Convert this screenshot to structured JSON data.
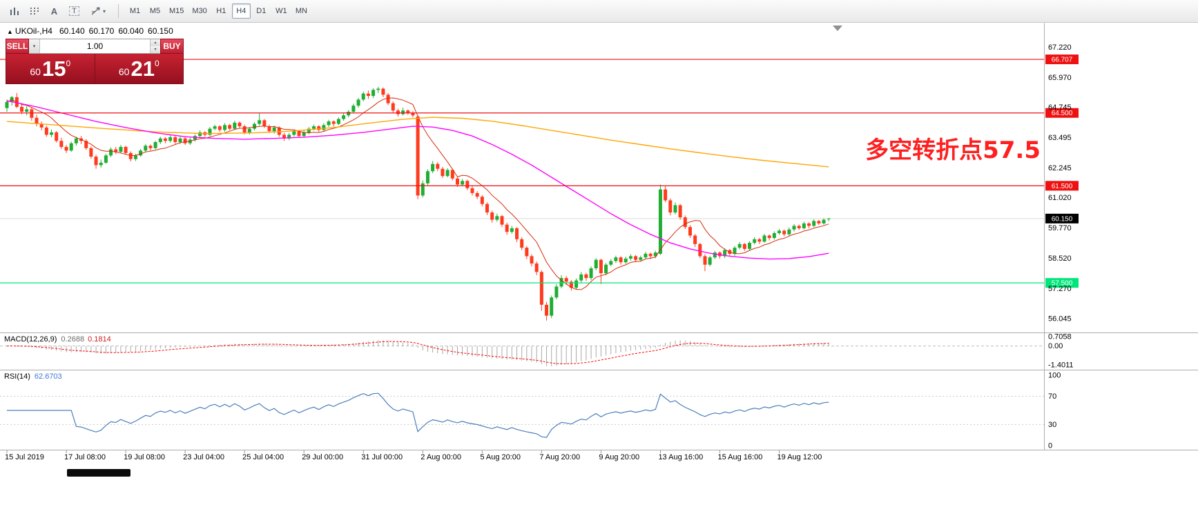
{
  "toolbar": {
    "timeframes": [
      "M1",
      "M5",
      "M15",
      "M30",
      "H1",
      "H4",
      "D1",
      "W1",
      "MN"
    ],
    "active_timeframe": "H4",
    "icons": [
      "bar-chart-icon",
      "indicators-grid-icon",
      "text-a-icon",
      "text-label-icon",
      "drawing-tools-icon",
      "chevron-down-icon"
    ],
    "a_glyph": "A",
    "t_glyph": "T",
    "caret_glyph": "▾"
  },
  "symbol_line": {
    "collapse_arrow": "▲",
    "symbol": "UKOil-,H4",
    "open": "60.140",
    "high": "60.170",
    "low": "60.040",
    "close": "60.150"
  },
  "trade_panel": {
    "sell_label": "SELL",
    "buy_label": "BUY",
    "volume": "1.00",
    "spinner_up": "▴",
    "spinner_down": "▾",
    "dropdown_glyph": "▾",
    "sell_price_small": "60",
    "sell_price_big": "15",
    "sell_price_sup": "0",
    "buy_price_small": "60",
    "buy_price_big": "21",
    "buy_price_sup": "0"
  },
  "chart_data": {
    "type": "candlestick",
    "symbol": "UKOil-",
    "timeframe": "H4",
    "colors": {
      "bull": "#1fae33",
      "bear": "#ff3b1e",
      "ma_fast": "#d42b0a",
      "ma_mid": "#ff00ff",
      "ma_slow": "#ffa500",
      "line_red": "#ee1111",
      "line_green": "#00e67a",
      "current_tag": "#000000",
      "rsi": "#4a7ebb",
      "macd_hist": "#a8a8a8",
      "macd_signal": "#ff0000"
    },
    "y_axis_ticks": [
      "67.220",
      "65.970",
      "64.745",
      "63.495",
      "62.245",
      "61.020",
      "59.770",
      "58.520",
      "57.270",
      "56.045"
    ],
    "h_lines": [
      {
        "value": 66.707,
        "label": "66.707",
        "color": "#ee1111"
      },
      {
        "value": 64.5,
        "label": "64.500",
        "color": "#ee1111"
      },
      {
        "value": 61.5,
        "label": "61.500",
        "color": "#ee1111"
      },
      {
        "value": 57.5,
        "label": "57.500",
        "color": "#00e67a"
      }
    ],
    "current_price": {
      "value": 60.15,
      "label": "60.150"
    },
    "x_axis_labels": [
      {
        "bar": 0,
        "label": "15 Jul 2019"
      },
      {
        "bar": 12,
        "label": "17 Jul 08:00"
      },
      {
        "bar": 24,
        "label": "19 Jul 08:00"
      },
      {
        "bar": 36,
        "label": "23 Jul 04:00"
      },
      {
        "bar": 48,
        "label": "25 Jul 04:00"
      },
      {
        "bar": 60,
        "label": "29 Jul 00:00"
      },
      {
        "bar": 72,
        "label": "31 Jul 00:00"
      },
      {
        "bar": 84,
        "label": "2 Aug 00:00"
      },
      {
        "bar": 96,
        "label": "5 Aug 20:00"
      },
      {
        "bar": 108,
        "label": "7 Aug 20:00"
      },
      {
        "bar": 120,
        "label": "9 Aug 20:00"
      },
      {
        "bar": 132,
        "label": "13 Aug 16:00"
      },
      {
        "bar": 144,
        "label": "15 Aug 16:00"
      },
      {
        "bar": 156,
        "label": "19 Aug 12:00"
      }
    ],
    "macd": {
      "name": "MACD(12,26,9)",
      "main_value": "0.2688",
      "signal_value": "0.1814",
      "axis_labels": [
        "0.7058",
        "0.00",
        "-1.4011"
      ]
    },
    "rsi": {
      "name": "RSI(14)",
      "value": "62.6703",
      "axis_labels": [
        "100",
        "70",
        "30",
        "0"
      ],
      "dashed_levels": [
        70,
        30
      ]
    },
    "annotation": {
      "text": "多空转折点57.5",
      "color": "#ff1f1f"
    },
    "ma_lines": [
      {
        "name": "ma-slow",
        "color": "#ffa500",
        "points": [
          [
            0,
            64.15
          ],
          [
            10,
            64.0
          ],
          [
            20,
            63.85
          ],
          [
            30,
            63.72
          ],
          [
            40,
            63.65
          ],
          [
            50,
            63.68
          ],
          [
            58,
            63.76
          ],
          [
            66,
            63.9
          ],
          [
            74,
            64.1
          ],
          [
            80,
            64.24
          ],
          [
            86,
            64.32
          ],
          [
            92,
            64.28
          ],
          [
            98,
            64.16
          ],
          [
            104,
            63.98
          ],
          [
            110,
            63.78
          ],
          [
            116,
            63.58
          ],
          [
            122,
            63.38
          ],
          [
            128,
            63.2
          ],
          [
            134,
            63.02
          ],
          [
            140,
            62.86
          ],
          [
            146,
            62.7
          ],
          [
            152,
            62.56
          ],
          [
            158,
            62.44
          ],
          [
            166,
            62.28
          ]
        ]
      },
      {
        "name": "ma-mid",
        "color": "#ff00ff",
        "points": [
          [
            0,
            65.0
          ],
          [
            6,
            64.75
          ],
          [
            12,
            64.45
          ],
          [
            18,
            64.15
          ],
          [
            24,
            63.9
          ],
          [
            30,
            63.68
          ],
          [
            36,
            63.52
          ],
          [
            42,
            63.45
          ],
          [
            48,
            63.42
          ],
          [
            54,
            63.45
          ],
          [
            60,
            63.5
          ],
          [
            66,
            63.58
          ],
          [
            72,
            63.7
          ],
          [
            78,
            63.85
          ],
          [
            82,
            63.95
          ],
          [
            86,
            63.92
          ],
          [
            90,
            63.78
          ],
          [
            94,
            63.55
          ],
          [
            98,
            63.2
          ],
          [
            102,
            62.8
          ],
          [
            106,
            62.35
          ],
          [
            110,
            61.85
          ],
          [
            114,
            61.35
          ],
          [
            118,
            60.85
          ],
          [
            122,
            60.35
          ],
          [
            126,
            59.9
          ],
          [
            130,
            59.5
          ],
          [
            134,
            59.15
          ],
          [
            138,
            58.9
          ],
          [
            142,
            58.72
          ],
          [
            146,
            58.6
          ],
          [
            150,
            58.52
          ],
          [
            154,
            58.48
          ],
          [
            158,
            58.5
          ],
          [
            162,
            58.58
          ],
          [
            166,
            58.72
          ]
        ]
      }
    ],
    "ma_fast_period": 9,
    "candles": [
      [
        64.7,
        65.05,
        64.55,
        64.95
      ],
      [
        64.95,
        65.2,
        64.8,
        65.15
      ],
      [
        65.15,
        65.32,
        64.7,
        64.75
      ],
      [
        64.75,
        64.9,
        64.45,
        64.55
      ],
      [
        64.55,
        64.78,
        64.4,
        64.65
      ],
      [
        64.65,
        64.72,
        64.18,
        64.3
      ],
      [
        64.3,
        64.42,
        63.95,
        64.05
      ],
      [
        64.05,
        64.15,
        63.78,
        63.9
      ],
      [
        63.9,
        63.98,
        63.52,
        63.6
      ],
      [
        63.6,
        63.82,
        63.5,
        63.7
      ],
      [
        63.7,
        63.76,
        63.28,
        63.35
      ],
      [
        63.35,
        63.48,
        63.02,
        63.1
      ],
      [
        63.1,
        63.18,
        62.85,
        62.95
      ],
      [
        62.95,
        63.32,
        62.9,
        63.25
      ],
      [
        63.25,
        63.52,
        63.15,
        63.45
      ],
      [
        63.45,
        63.55,
        63.22,
        63.35
      ],
      [
        63.35,
        63.42,
        62.98,
        63.05
      ],
      [
        63.05,
        63.12,
        62.62,
        62.7
      ],
      [
        62.7,
        62.78,
        62.2,
        62.35
      ],
      [
        62.35,
        62.58,
        62.25,
        62.45
      ],
      [
        62.45,
        62.82,
        62.4,
        62.75
      ],
      [
        62.75,
        63.08,
        62.68,
        63.0
      ],
      [
        63.0,
        63.1,
        62.8,
        62.9
      ],
      [
        62.9,
        63.18,
        62.85,
        63.1
      ],
      [
        63.1,
        63.15,
        62.78,
        62.85
      ],
      [
        62.85,
        62.92,
        62.5,
        62.6
      ],
      [
        62.6,
        62.82,
        62.52,
        62.75
      ],
      [
        62.75,
        63.02,
        62.7,
        62.95
      ],
      [
        62.95,
        63.22,
        62.88,
        63.15
      ],
      [
        63.15,
        63.2,
        62.95,
        63.05
      ],
      [
        63.05,
        63.35,
        63.0,
        63.3
      ],
      [
        63.3,
        63.52,
        63.22,
        63.45
      ],
      [
        63.45,
        63.5,
        63.25,
        63.35
      ],
      [
        63.35,
        63.58,
        63.28,
        63.5
      ],
      [
        63.5,
        63.55,
        63.22,
        63.3
      ],
      [
        63.3,
        63.52,
        63.22,
        63.45
      ],
      [
        63.45,
        63.5,
        63.18,
        63.25
      ],
      [
        63.25,
        63.48,
        63.18,
        63.4
      ],
      [
        63.4,
        63.62,
        63.32,
        63.55
      ],
      [
        63.55,
        63.78,
        63.48,
        63.7
      ],
      [
        63.7,
        63.75,
        63.52,
        63.6
      ],
      [
        63.6,
        63.92,
        63.55,
        63.85
      ],
      [
        63.85,
        64.02,
        63.78,
        63.95
      ],
      [
        63.95,
        64.0,
        63.72,
        63.8
      ],
      [
        63.8,
        64.08,
        63.72,
        64.0
      ],
      [
        64.0,
        64.05,
        63.78,
        63.85
      ],
      [
        63.85,
        64.18,
        63.8,
        64.1
      ],
      [
        64.1,
        64.15,
        63.88,
        63.95
      ],
      [
        63.95,
        64.02,
        63.62,
        63.7
      ],
      [
        63.7,
        63.92,
        63.62,
        63.85
      ],
      [
        63.85,
        64.12,
        63.78,
        64.05
      ],
      [
        64.05,
        64.48,
        63.98,
        64.2
      ],
      [
        64.2,
        64.25,
        63.88,
        63.95
      ],
      [
        63.95,
        64.02,
        63.68,
        63.75
      ],
      [
        63.75,
        63.98,
        63.65,
        63.9
      ],
      [
        63.9,
        63.95,
        63.52,
        63.6
      ],
      [
        63.6,
        63.68,
        63.35,
        63.45
      ],
      [
        63.45,
        63.68,
        63.38,
        63.6
      ],
      [
        63.6,
        63.82,
        63.52,
        63.75
      ],
      [
        63.75,
        63.8,
        63.48,
        63.55
      ],
      [
        63.55,
        63.78,
        63.48,
        63.7
      ],
      [
        63.7,
        63.92,
        63.62,
        63.85
      ],
      [
        63.85,
        64.02,
        63.78,
        63.95
      ],
      [
        63.95,
        64.0,
        63.72,
        63.8
      ],
      [
        63.8,
        64.08,
        63.75,
        64.0
      ],
      [
        64.0,
        64.22,
        63.92,
        64.15
      ],
      [
        64.15,
        64.2,
        63.95,
        64.05
      ],
      [
        64.05,
        64.32,
        64.0,
        64.25
      ],
      [
        64.25,
        64.48,
        64.18,
        64.4
      ],
      [
        64.4,
        64.62,
        64.32,
        64.55
      ],
      [
        64.55,
        64.88,
        64.48,
        64.8
      ],
      [
        64.8,
        65.12,
        64.72,
        65.05
      ],
      [
        65.05,
        65.38,
        64.98,
        65.3
      ],
      [
        65.3,
        65.42,
        65.08,
        65.2
      ],
      [
        65.2,
        65.52,
        65.12,
        65.45
      ],
      [
        65.45,
        65.58,
        65.32,
        65.5
      ],
      [
        65.5,
        65.55,
        65.15,
        65.25
      ],
      [
        65.25,
        65.32,
        64.82,
        64.9
      ],
      [
        64.9,
        64.98,
        64.52,
        64.6
      ],
      [
        64.6,
        64.68,
        64.35,
        64.45
      ],
      [
        64.45,
        64.72,
        64.4,
        64.6
      ],
      [
        64.6,
        64.65,
        64.42,
        64.5
      ],
      [
        64.5,
        64.58,
        64.32,
        64.4
      ],
      [
        64.35,
        64.42,
        60.95,
        61.1
      ],
      [
        61.1,
        61.72,
        61.02,
        61.6
      ],
      [
        61.6,
        62.18,
        61.52,
        62.1
      ],
      [
        62.1,
        62.52,
        62.02,
        62.4
      ],
      [
        62.4,
        62.48,
        62.1,
        62.2
      ],
      [
        62.2,
        62.28,
        61.82,
        61.9
      ],
      [
        61.9,
        62.22,
        61.85,
        62.15
      ],
      [
        62.15,
        62.2,
        61.72,
        61.8
      ],
      [
        61.8,
        61.88,
        61.45,
        61.55
      ],
      [
        61.55,
        61.78,
        61.48,
        61.7
      ],
      [
        61.7,
        61.75,
        61.32,
        61.4
      ],
      [
        61.4,
        61.48,
        61.1,
        61.2
      ],
      [
        61.2,
        61.28,
        60.95,
        61.05
      ],
      [
        61.05,
        61.12,
        60.65,
        60.75
      ],
      [
        60.75,
        60.82,
        60.3,
        60.4
      ],
      [
        60.4,
        60.48,
        59.98,
        60.1
      ],
      [
        60.1,
        60.35,
        60.02,
        60.25
      ],
      [
        60.25,
        60.3,
        59.8,
        59.9
      ],
      [
        59.9,
        59.98,
        59.48,
        59.6
      ],
      [
        59.6,
        59.85,
        59.52,
        59.75
      ],
      [
        59.75,
        59.8,
        59.18,
        59.3
      ],
      [
        59.3,
        59.38,
        58.85,
        58.95
      ],
      [
        58.95,
        59.02,
        58.48,
        58.6
      ],
      [
        58.6,
        58.68,
        58.18,
        58.3
      ],
      [
        58.3,
        58.38,
        57.82,
        57.95
      ],
      [
        57.95,
        58.02,
        56.35,
        56.6
      ],
      [
        56.6,
        56.72,
        55.95,
        56.15
      ],
      [
        56.15,
        56.98,
        56.05,
        56.9
      ],
      [
        56.9,
        57.45,
        56.82,
        57.35
      ],
      [
        57.35,
        57.82,
        57.28,
        57.7
      ],
      [
        57.7,
        57.78,
        57.42,
        57.55
      ],
      [
        57.55,
        57.62,
        57.18,
        57.3
      ],
      [
        57.3,
        57.68,
        57.22,
        57.6
      ],
      [
        57.6,
        57.95,
        57.52,
        57.85
      ],
      [
        57.85,
        57.92,
        57.58,
        57.7
      ],
      [
        57.7,
        58.18,
        57.62,
        58.1
      ],
      [
        58.1,
        58.52,
        58.02,
        58.45
      ],
      [
        58.45,
        58.5,
        57.45,
        57.9
      ],
      [
        57.9,
        58.32,
        57.82,
        58.25
      ],
      [
        58.25,
        58.48,
        58.18,
        58.4
      ],
      [
        58.4,
        58.62,
        58.32,
        58.55
      ],
      [
        58.55,
        58.6,
        58.25,
        58.35
      ],
      [
        58.35,
        58.58,
        58.28,
        58.5
      ],
      [
        58.5,
        58.68,
        58.42,
        58.6
      ],
      [
        58.6,
        58.65,
        58.35,
        58.45
      ],
      [
        58.45,
        58.62,
        58.38,
        58.55
      ],
      [
        58.55,
        58.78,
        58.48,
        58.7
      ],
      [
        58.7,
        58.75,
        58.48,
        58.6
      ],
      [
        58.6,
        58.82,
        58.52,
        58.75
      ],
      [
        58.7,
        61.55,
        58.65,
        61.35
      ],
      [
        61.35,
        61.48,
        60.82,
        60.9
      ],
      [
        60.9,
        60.98,
        60.28,
        60.4
      ],
      [
        60.4,
        60.82,
        60.32,
        60.7
      ],
      [
        60.7,
        60.75,
        60.1,
        60.2
      ],
      [
        60.2,
        60.28,
        59.72,
        59.8
      ],
      [
        59.8,
        59.88,
        59.35,
        59.45
      ],
      [
        59.45,
        59.52,
        58.98,
        59.1
      ],
      [
        59.1,
        59.15,
        58.52,
        58.6
      ],
      [
        58.6,
        58.68,
        57.98,
        58.25
      ],
      [
        58.25,
        58.62,
        58.18,
        58.55
      ],
      [
        58.55,
        58.82,
        58.48,
        58.75
      ],
      [
        58.75,
        58.8,
        58.5,
        58.6
      ],
      [
        58.6,
        58.92,
        58.52,
        58.85
      ],
      [
        58.85,
        58.9,
        58.62,
        58.7
      ],
      [
        58.7,
        59.02,
        58.62,
        58.95
      ],
      [
        58.95,
        59.18,
        58.88,
        59.1
      ],
      [
        59.1,
        59.15,
        58.82,
        58.9
      ],
      [
        58.9,
        59.22,
        58.85,
        59.15
      ],
      [
        59.15,
        59.38,
        59.08,
        59.3
      ],
      [
        59.3,
        59.35,
        59.1,
        59.2
      ],
      [
        59.2,
        59.52,
        59.15,
        59.45
      ],
      [
        59.45,
        59.5,
        59.25,
        59.35
      ],
      [
        59.35,
        59.62,
        59.28,
        59.55
      ],
      [
        59.55,
        59.72,
        59.48,
        59.65
      ],
      [
        59.65,
        59.7,
        59.42,
        59.5
      ],
      [
        59.5,
        59.78,
        59.45,
        59.7
      ],
      [
        59.7,
        59.92,
        59.62,
        59.85
      ],
      [
        59.85,
        59.9,
        59.68,
        59.75
      ],
      [
        59.75,
        60.02,
        59.7,
        59.95
      ],
      [
        59.95,
        60.0,
        59.75,
        59.85
      ],
      [
        59.85,
        60.12,
        59.8,
        60.05
      ],
      [
        60.05,
        60.1,
        59.88,
        59.95
      ],
      [
        59.95,
        60.16,
        59.9,
        60.1
      ],
      [
        60.14,
        60.17,
        60.04,
        60.15
      ]
    ]
  }
}
